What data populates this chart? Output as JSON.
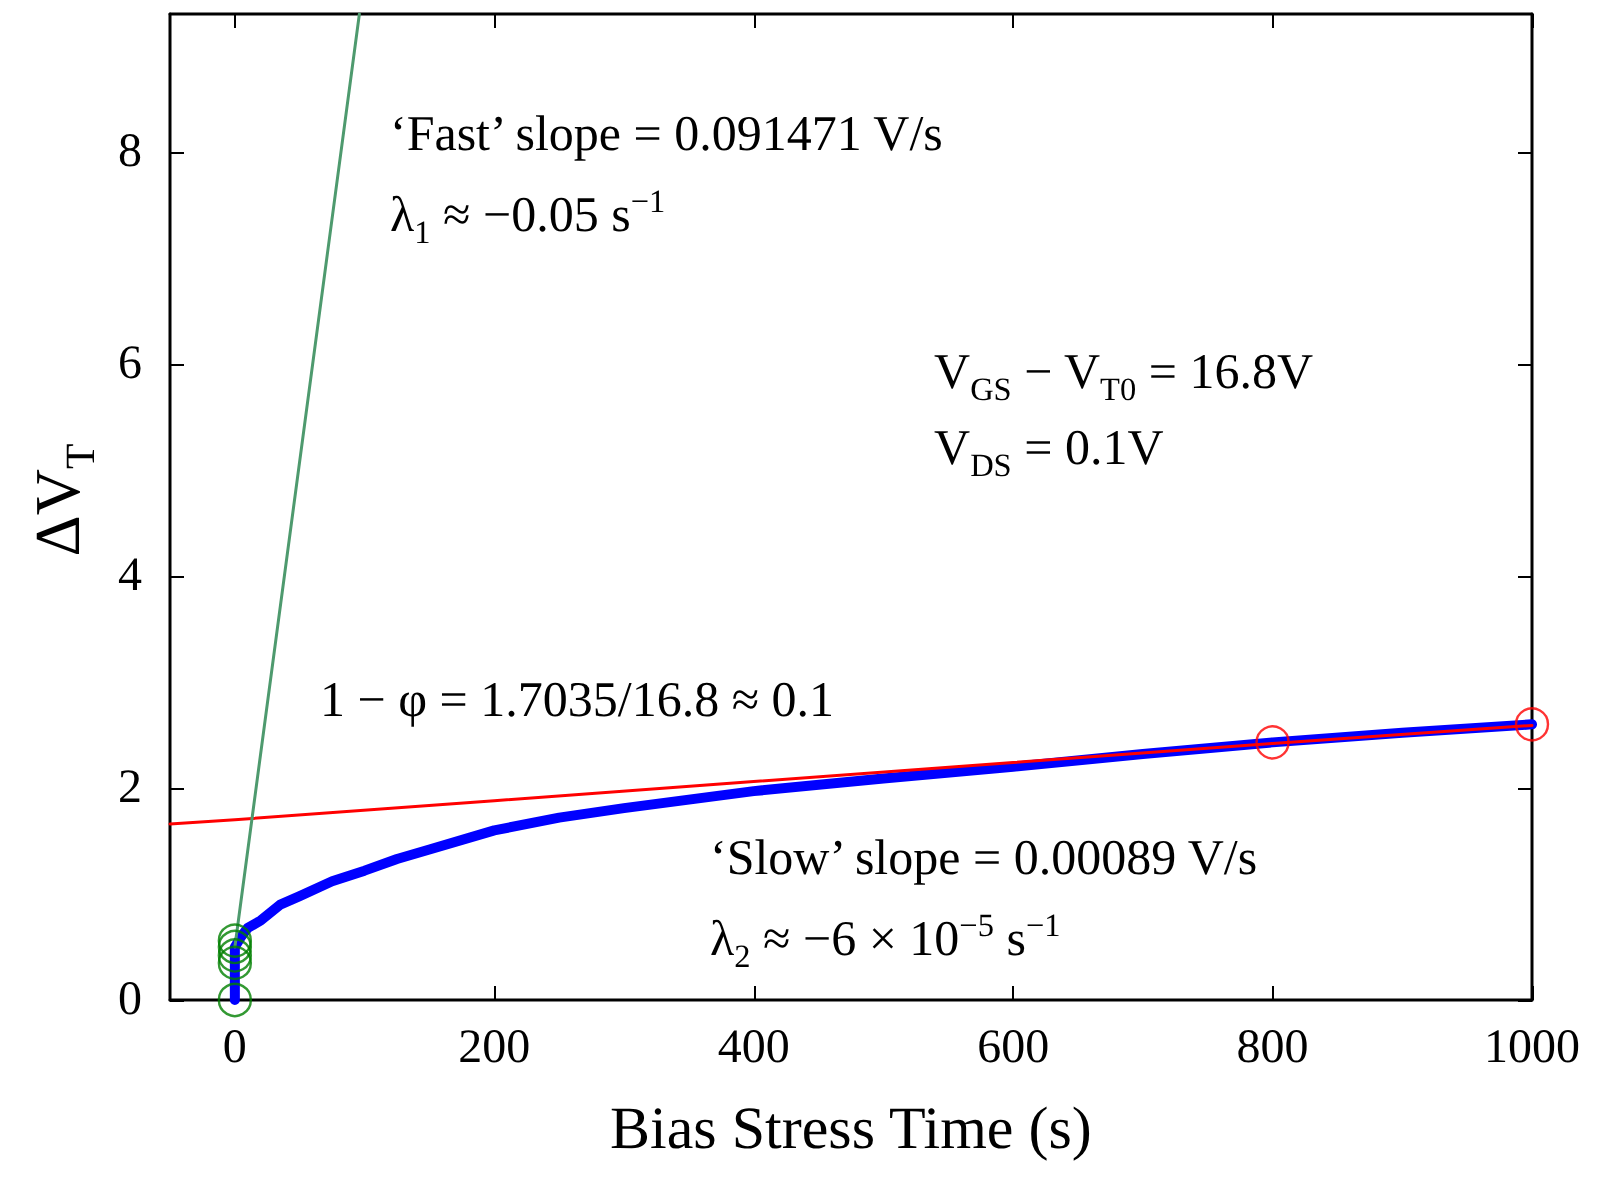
{
  "chart_data": {
    "type": "line",
    "xlabel": "Bias Stress Time (s)",
    "ylabel": "ΔV$_{T}$",
    "xlim": [
      -50,
      1000
    ],
    "xticks": [
      0,
      200,
      400,
      600,
      800,
      1000
    ],
    "ylim": [
      0,
      9.3
    ],
    "yticks": [
      0,
      2,
      4,
      6,
      8
    ],
    "grid": false,
    "series": [
      {
        "color": "#0000ff",
        "x": [
          0,
          0,
          5,
          10,
          20,
          35,
          50,
          75,
          100,
          125,
          150,
          200,
          250,
          300,
          400,
          500,
          600,
          700,
          800,
          900,
          1000
        ],
        "values": [
          0,
          0.5,
          0.6,
          0.68,
          0.75,
          0.9,
          0.98,
          1.12,
          1.22,
          1.33,
          1.42,
          1.6,
          1.72,
          1.81,
          1.97,
          2.09,
          2.2,
          2.32,
          2.43,
          2.52,
          2.6
        ],
        "marker": "none",
        "line_style": "solid"
      },
      {
        "color": "#ff0000",
        "x": [
          -50,
          0,
          200,
          400,
          600,
          800,
          1000
        ],
        "values": [
          1.66,
          1.7,
          1.88,
          2.06,
          2.24,
          2.42,
          2.59
        ],
        "marker": "none",
        "line_style": "solid"
      },
      {
        "color": "#4e9a6e",
        "x": [
          0,
          96
        ],
        "values": [
          0.5,
          9.3
        ],
        "marker": "none",
        "line_style": "solid"
      },
      {
        "type": "scatter",
        "color": "#008000",
        "x": [
          0,
          0,
          0,
          0,
          0
        ],
        "values": [
          0,
          0.35,
          0.42,
          0.5,
          0.56
        ],
        "marker": "circle"
      },
      {
        "type": "scatter",
        "color": "#ff0000",
        "x": [
          800,
          1000
        ],
        "values": [
          2.43,
          2.6
        ],
        "marker": "circle"
      }
    ],
    "annotations": [
      "‘Fast’ slope = 0.091471 V/s",
      "λ$_{1}$ ≈ −0.05 s$^{−1}$",
      "V$_{GS}$ − V$_{T0}$ = 16.8V",
      "V$_{DS}$ = 0.1V",
      "1 − φ = 1.7035/16.8 ≈ 0.1",
      "‘Slow’ slope = 0.00089 V/s",
      "λ$_{2}$ ≈ −6 × 10$^{−5}$ s$^{−1}$"
    ]
  }
}
